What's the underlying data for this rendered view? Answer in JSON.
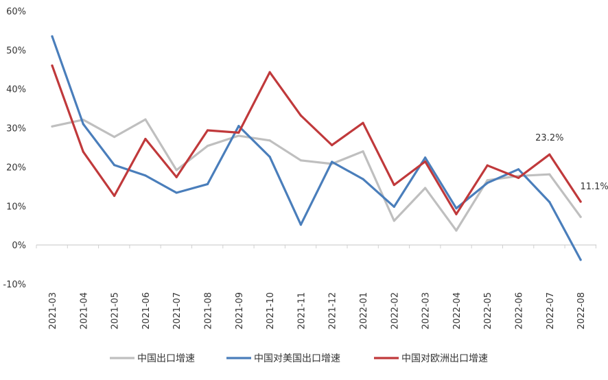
{
  "chart_data": {
    "type": "line",
    "title": "",
    "xlabel": "",
    "ylabel": "",
    "categories": [
      "2021-03",
      "2021-04",
      "2021-05",
      "2021-06",
      "2021-07",
      "2021-08",
      "2021-09",
      "2021-10",
      "2021-11",
      "2021-12",
      "2022-01",
      "2022-02",
      "2022-03",
      "2022-04",
      "2022-05",
      "2022-06",
      "2022-07",
      "2022-08"
    ],
    "ylim": [
      -10,
      60
    ],
    "yticks": [
      -10,
      0,
      10,
      20,
      30,
      40,
      50,
      60
    ],
    "ytick_labels": [
      "-10%",
      "0%",
      "10%",
      "20%",
      "30%",
      "40%",
      "50%",
      "60%"
    ],
    "grid": false,
    "legend_position": "bottom",
    "series": [
      {
        "name": "中国出口增速",
        "color": "#bfbfbf",
        "values": [
          30.4,
          32.1,
          27.7,
          32.2,
          19.2,
          25.4,
          28.0,
          26.8,
          21.7,
          20.8,
          24.0,
          6.2,
          14.6,
          3.7,
          16.6,
          17.7,
          18.1,
          7.2
        ]
      },
      {
        "name": "中国对美国出口增速",
        "color": "#4a7ebb",
        "values": [
          53.5,
          31.0,
          20.5,
          17.8,
          13.4,
          15.6,
          30.5,
          22.6,
          5.2,
          21.3,
          16.9,
          9.8,
          22.4,
          9.4,
          15.9,
          19.4,
          11.0,
          -3.8
        ]
      },
      {
        "name": "中国对欧洲出口增速",
        "color": "#c0393b",
        "values": [
          46.0,
          23.9,
          12.6,
          27.2,
          17.4,
          29.4,
          28.8,
          44.3,
          33.2,
          25.6,
          31.3,
          15.4,
          21.4,
          7.9,
          20.4,
          17.2,
          23.2,
          11.1
        ]
      }
    ],
    "annotations": [
      {
        "text": "23.2%",
        "series": 2,
        "index": 16
      },
      {
        "text": "11.1%",
        "series": 2,
        "index": 17
      }
    ]
  }
}
